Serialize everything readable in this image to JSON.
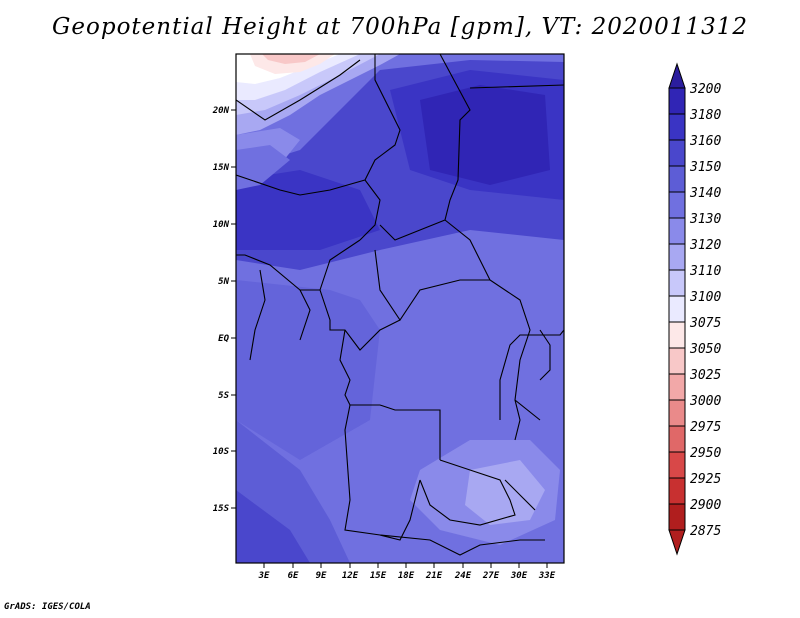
{
  "title": "Geopotential Height at 700hPa [gpm], VT: 2020011312",
  "credit": "GrADS: IGES/COLA",
  "map": {
    "lat_ticks": [
      "20N",
      "15N",
      "10N",
      "5N",
      "EQ",
      "5S",
      "10S",
      "15S"
    ],
    "lon_ticks": [
      "3E",
      "6E",
      "9E",
      "12E",
      "15E",
      "18E",
      "21E",
      "24E",
      "27E",
      "30E",
      "33E"
    ]
  },
  "colorbar": {
    "levels": [
      "3200",
      "3180",
      "3160",
      "3150",
      "3140",
      "3130",
      "3120",
      "3110",
      "3100",
      "3075",
      "3050",
      "3025",
      "3000",
      "2975",
      "2950",
      "2925",
      "2900",
      "2875"
    ],
    "colors": [
      "#2b1d9e",
      "#3025b5",
      "#3a34c4",
      "#4a47cc",
      "#5d5dd6",
      "#7070e0",
      "#8a8aea",
      "#a8a8f2",
      "#c8c8fa",
      "#eaeaff",
      "#fde8e8",
      "#f8c8c8",
      "#f2a8a8",
      "#ea8a8a",
      "#e06868",
      "#d84848",
      "#c83030",
      "#b01e1e"
    ]
  }
}
